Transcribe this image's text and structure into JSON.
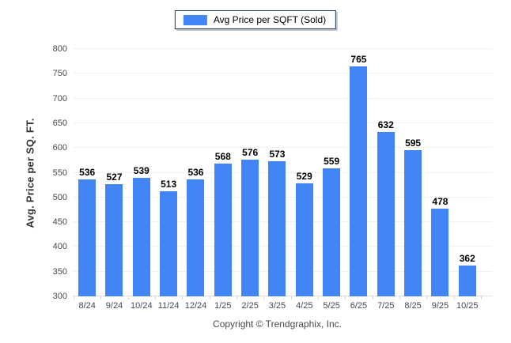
{
  "legend": {
    "label": "Avg Price per SQFT (Sold)"
  },
  "colors": {
    "bar": "#4285f4",
    "legend_border": "#17375e",
    "gridline": "#f0f0f0"
  },
  "footer": {
    "copyright": "Copyright © Trendgraphix, Inc."
  },
  "chart_data": {
    "type": "bar",
    "categories": [
      "8/24",
      "9/24",
      "10/24",
      "11/24",
      "12/24",
      "1/25",
      "2/25",
      "3/25",
      "4/25",
      "5/25",
      "6/25",
      "7/25",
      "8/25",
      "9/25",
      "10/25"
    ],
    "values": [
      536,
      527,
      539,
      513,
      536,
      568,
      576,
      573,
      529,
      559,
      765,
      632,
      595,
      478,
      362
    ],
    "title": "",
    "xlabel": "",
    "ylabel": "Avg. Price per SQ. FT.",
    "ylim": [
      300,
      800
    ],
    "yticks": [
      300,
      350,
      400,
      450,
      500,
      550,
      600,
      650,
      700,
      750,
      800
    ],
    "bar_color": "#4285f4",
    "grid": true,
    "legend_position": "top-center"
  }
}
